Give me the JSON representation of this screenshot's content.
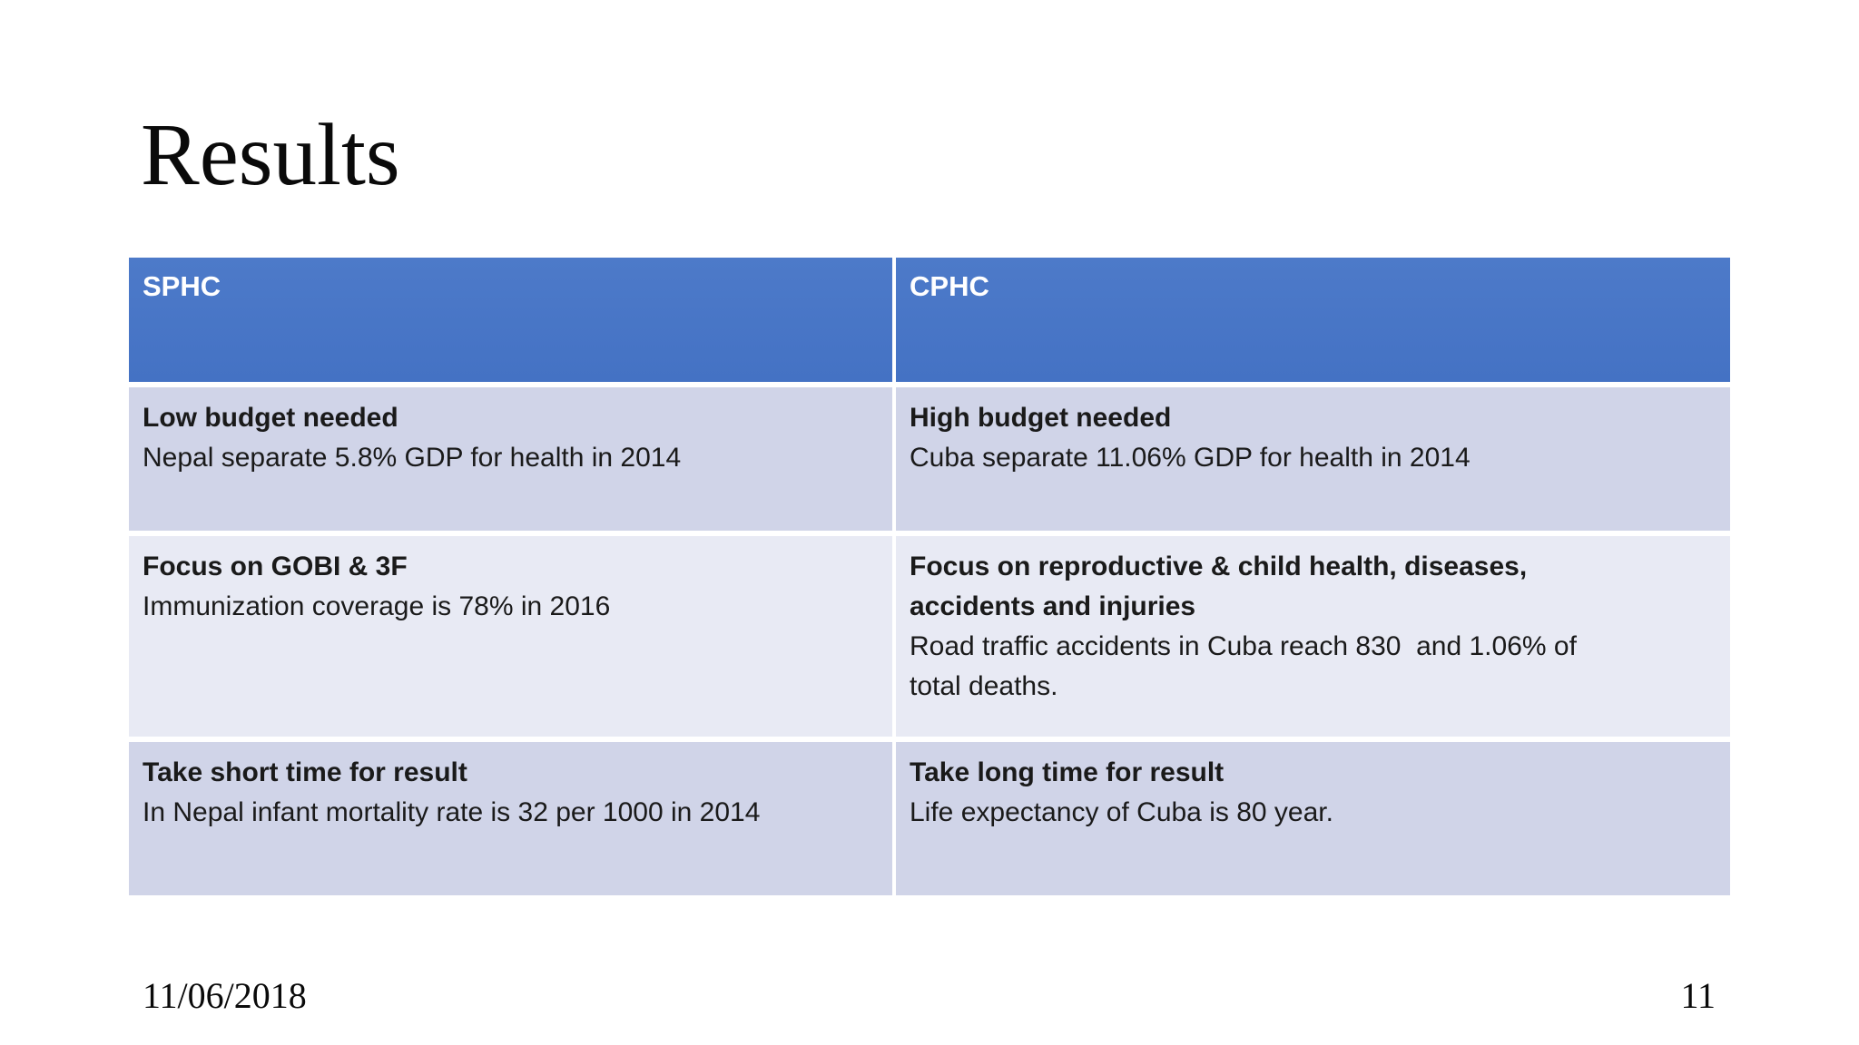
{
  "slide": {
    "title": "Results",
    "footer": {
      "date": "11/06/2018",
      "page_number": "11"
    }
  },
  "table": {
    "columns": [
      {
        "header": "SPHC"
      },
      {
        "header": "CPHC"
      }
    ],
    "rows": [
      {
        "cells": [
          {
            "heading": "Low budget needed",
            "body": "Nepal separate 5.8% GDP for health in 2014"
          },
          {
            "heading": "High budget needed",
            "body": "Cuba separate 11.06% GDP for health in 2014"
          }
        ]
      },
      {
        "cells": [
          {
            "heading": "Focus on GOBI & 3F",
            "body": "Immunization coverage is 78% in 2016"
          },
          {
            "heading": "Focus on reproductive & child health, diseases,\naccidents and injuries",
            "body": "Road traffic accidents in Cuba reach 830  and 1.06% of\ntotal deaths."
          }
        ]
      },
      {
        "cells": [
          {
            "heading": "Take short time for result",
            "body": "In Nepal infant mortality rate is 32 per 1000 in 2014"
          },
          {
            "heading": "Take long time for result",
            "body": "Life expectancy of Cuba is 80 year."
          }
        ]
      }
    ]
  },
  "colors": {
    "header_bg": "#4472c4",
    "header_bg_top": "#4d7ac9",
    "header_text": "#ffffff",
    "band_dark": "#d0d4e8",
    "band_light": "#e8eaf4",
    "body_text": "#1a1a1a",
    "background": "#ffffff"
  }
}
